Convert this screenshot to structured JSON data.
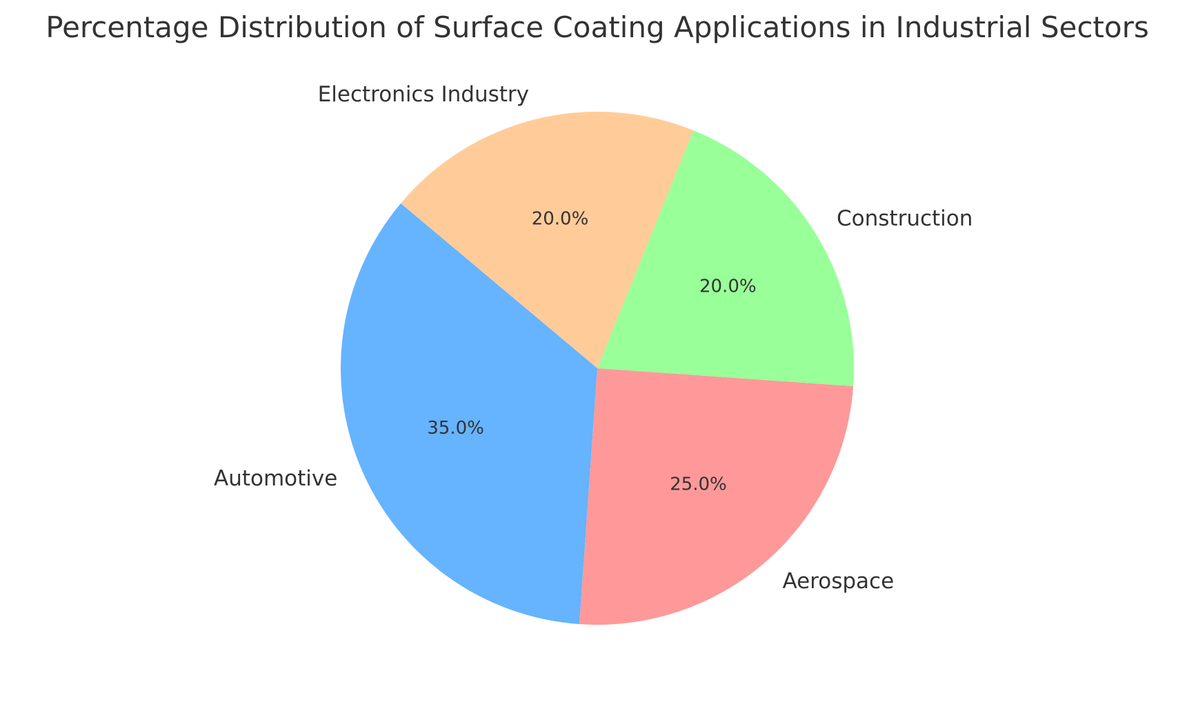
{
  "chart_data": {
    "type": "pie",
    "title": "Percentage Distribution of Surface Coating Applications in Industrial Sectors",
    "categories": [
      "Automotive",
      "Aerospace",
      "Construction",
      "Electronics Industry"
    ],
    "values": [
      35.0,
      25.0,
      20.0,
      20.0
    ],
    "value_labels": [
      "35.0%",
      "25.0%",
      "20.0%",
      "20.0%"
    ],
    "colors": [
      "#66b3ff",
      "#ff9999",
      "#99ff99",
      "#ffcc99"
    ],
    "start_angle_deg": 140,
    "direction": "counterclockwise"
  }
}
